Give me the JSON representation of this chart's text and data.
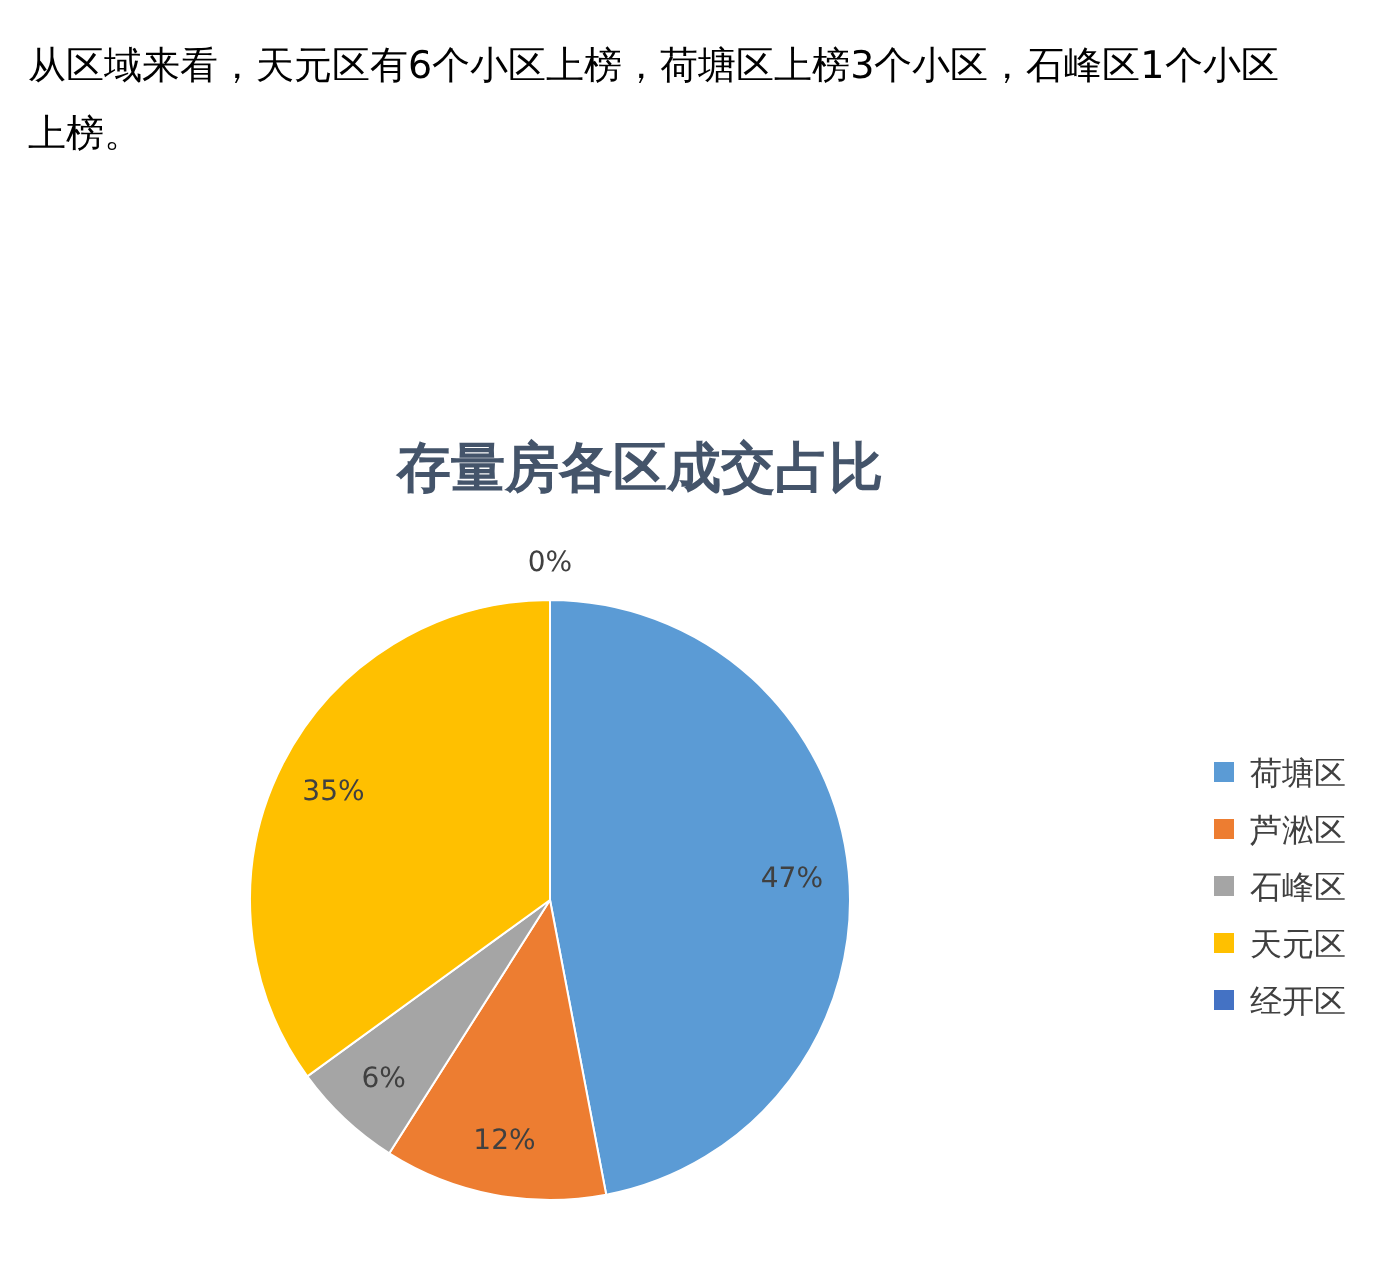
{
  "chart_data": {
    "type": "pie",
    "title": "存量房各区成交占比",
    "annotations": [
      "从区域来看，天元区有6个小区上榜，荷塘区上榜3个小区，石峰区1个小区上榜。"
    ],
    "categories": [
      "荷塘区",
      "芦淞区",
      "石峰区",
      "天元区",
      "经开区"
    ],
    "values": [
      47,
      12,
      6,
      35,
      0
    ],
    "value_labels": [
      "47%",
      "12%",
      "6%",
      "35%",
      "0%"
    ],
    "colors": [
      "#5b9bd5",
      "#ed7d31",
      "#a5a5a5",
      "#ffc000",
      "#4472c4"
    ],
    "legend": "right"
  }
}
